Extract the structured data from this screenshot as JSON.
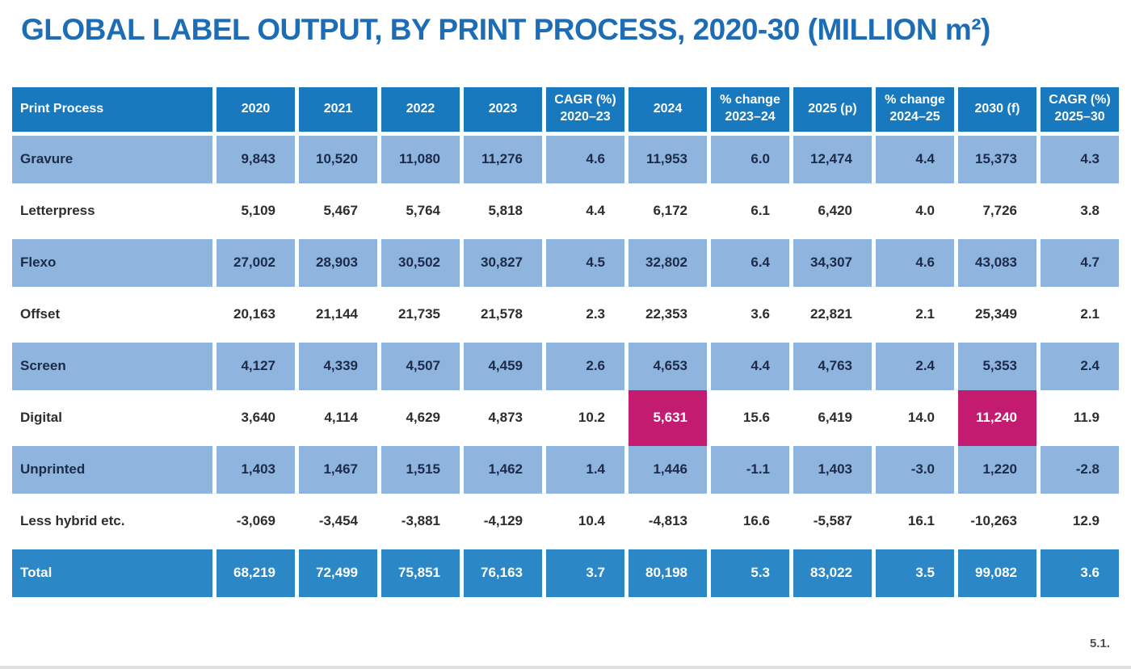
{
  "title": "GLOBAL LABEL OUTPUT, BY PRINT PROCESS, 2020-30 (MILLION m²)",
  "footnote": "5.1.",
  "colors": {
    "title_blue": "#1d6db6",
    "header_bg": "#1879bf",
    "alt_row_bg": "#8fb4dd",
    "total_row_bg": "#2b87c5",
    "highlight_bg": "#c21b70",
    "alt_row_text": "#1c2b49",
    "white_row_text": "#2d2d2d"
  },
  "chart_data": {
    "type": "table",
    "title": "GLOBAL LABEL OUTPUT, BY PRINT PROCESS, 2020-30 (MILLION m²)",
    "units": "million m²",
    "columns": [
      "Print Process",
      "2020",
      "2021",
      "2022",
      "2023",
      "CAGR (%)\n2020–23",
      "2024",
      "% change\n2023–24",
      "2025 (p)",
      "% change\n2024–25",
      "2030 (f)",
      "CAGR (%)\n2025–30"
    ],
    "rows": [
      {
        "label": "Gravure",
        "style": "blue",
        "values": [
          "9,843",
          "10,520",
          "11,080",
          "11,276",
          "4.6",
          "11,953",
          "6.0",
          "12,474",
          "4.4",
          "15,373",
          "4.3"
        ]
      },
      {
        "label": "Letterpress",
        "style": "white",
        "values": [
          "5,109",
          "5,467",
          "5,764",
          "5,818",
          "4.4",
          "6,172",
          "6.1",
          "6,420",
          "4.0",
          "7,726",
          "3.8"
        ]
      },
      {
        "label": "Flexo",
        "style": "blue",
        "values": [
          "27,002",
          "28,903",
          "30,502",
          "30,827",
          "4.5",
          "32,802",
          "6.4",
          "34,307",
          "4.6",
          "43,083",
          "4.7"
        ]
      },
      {
        "label": "Offset",
        "style": "white",
        "values": [
          "20,163",
          "21,144",
          "21,735",
          "21,578",
          "2.3",
          "22,353",
          "3.6",
          "22,821",
          "2.1",
          "25,349",
          "2.1"
        ]
      },
      {
        "label": "Screen",
        "style": "blue",
        "values": [
          "4,127",
          "4,339",
          "4,507",
          "4,459",
          "2.6",
          "4,653",
          "4.4",
          "4,763",
          "2.4",
          "5,353",
          "2.4"
        ]
      },
      {
        "label": "Digital",
        "style": "white",
        "highlights": [
          5,
          9
        ],
        "values": [
          "3,640",
          "4,114",
          "4,629",
          "4,873",
          "10.2",
          "5,631",
          "15.6",
          "6,419",
          "14.0",
          "11,240",
          "11.9"
        ]
      },
      {
        "label": "Unprinted",
        "style": "blue",
        "values": [
          "1,403",
          "1,467",
          "1,515",
          "1,462",
          "1.4",
          "1,446",
          "-1.1",
          "1,403",
          "-3.0",
          "1,220",
          "-2.8"
        ]
      },
      {
        "label": "Less hybrid etc.",
        "style": "white",
        "values": [
          "-3,069",
          "-3,454",
          "-3,881",
          "-4,129",
          "10.4",
          "-4,813",
          "16.6",
          "-5,587",
          "16.1",
          "-10,263",
          "12.9"
        ]
      },
      {
        "label": "Total",
        "style": "total",
        "values": [
          "68,219",
          "72,499",
          "75,851",
          "76,163",
          "3.7",
          "80,198",
          "5.3",
          "83,022",
          "3.5",
          "99,082",
          "3.6"
        ]
      }
    ]
  }
}
